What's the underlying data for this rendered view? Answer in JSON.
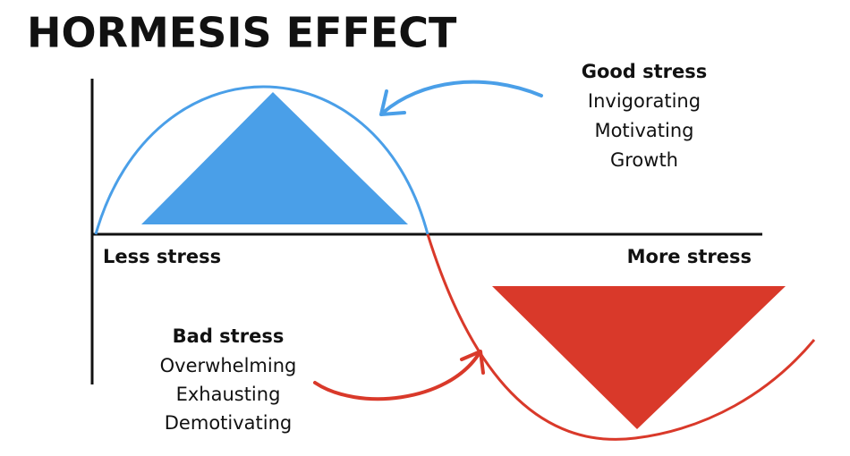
{
  "title": "HORMESIS EFFECT",
  "axis": {
    "left_label": "Less stress",
    "right_label": "More stress"
  },
  "good_stress": {
    "heading": "Good stress",
    "items": [
      "Invigorating",
      "Motivating",
      "Growth"
    ]
  },
  "bad_stress": {
    "heading": "Bad stress",
    "items": [
      "Overwhelming",
      "Exhausting",
      "Demotivating"
    ]
  }
}
